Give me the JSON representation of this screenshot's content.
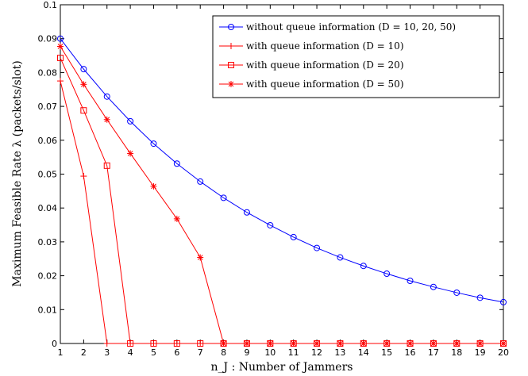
{
  "chart_data": {
    "type": "line",
    "xlabel": "n_J : Number of Jammers",
    "ylabel": "Maximum Feasible Rate λ (packets/slot)",
    "xlim": [
      1,
      20
    ],
    "ylim": [
      0,
      0.1
    ],
    "xticks": [
      "1",
      "2",
      "3",
      "4",
      "5",
      "6",
      "7",
      "8",
      "9",
      "10",
      "11",
      "12",
      "13",
      "14",
      "15",
      "16",
      "17",
      "18",
      "19",
      "20"
    ],
    "yticks": [
      "0",
      "0.01",
      "0.02",
      "0.03",
      "0.04",
      "0.05",
      "0.06",
      "0.07",
      "0.08",
      "0.09",
      "0.1"
    ],
    "grid": false,
    "legend_position": "top-right",
    "series": [
      {
        "name": "without queue information (D = 10, 20, 50)",
        "color": "#0000ff",
        "marker": "circle",
        "x": [
          1,
          2,
          3,
          4,
          5,
          6,
          7,
          8,
          9,
          10,
          11,
          12,
          13,
          14,
          15,
          16,
          17,
          18,
          19,
          20
        ],
        "y": [
          0.09,
          0.081,
          0.0729,
          0.0656,
          0.059,
          0.0531,
          0.0478,
          0.043,
          0.0387,
          0.0349,
          0.0314,
          0.0282,
          0.0254,
          0.0229,
          0.0206,
          0.0185,
          0.0167,
          0.015,
          0.0135,
          0.0122
        ]
      },
      {
        "name": "with queue information (D = 10)",
        "color": "#ff0000",
        "marker": "plus",
        "x": [
          1,
          2,
          3,
          4,
          5,
          6,
          7,
          8,
          9,
          10,
          11,
          12,
          13,
          14,
          15,
          16,
          17,
          18,
          19,
          20
        ],
        "y": [
          0.0775,
          0.0494,
          0,
          0,
          0,
          0,
          0,
          0,
          0,
          0,
          0,
          0,
          0,
          0,
          0,
          0,
          0,
          0,
          0,
          0
        ]
      },
      {
        "name": "with queue information (D = 20)",
        "color": "#ff0000",
        "marker": "square",
        "x": [
          1,
          2,
          3,
          4,
          5,
          6,
          7,
          8,
          9,
          10,
          11,
          12,
          13,
          14,
          15,
          16,
          17,
          18,
          19,
          20
        ],
        "y": [
          0.0843,
          0.0688,
          0.0525,
          0,
          0,
          0,
          0,
          0,
          0,
          0,
          0,
          0,
          0,
          0,
          0,
          0,
          0,
          0,
          0,
          0
        ]
      },
      {
        "name": "with queue information (D = 50)",
        "color": "#ff0000",
        "marker": "star",
        "x": [
          1,
          2,
          3,
          4,
          5,
          6,
          7,
          8,
          9,
          10,
          11,
          12,
          13,
          14,
          15,
          16,
          17,
          18,
          19,
          20
        ],
        "y": [
          0.0877,
          0.0765,
          0.0661,
          0.0561,
          0.0464,
          0.0368,
          0.0254,
          0,
          0,
          0,
          0,
          0,
          0,
          0,
          0,
          0,
          0,
          0,
          0,
          0
        ]
      }
    ]
  }
}
